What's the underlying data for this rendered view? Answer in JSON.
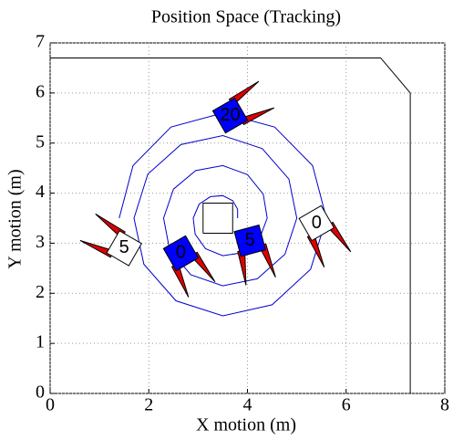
{
  "chart_data": {
    "type": "line",
    "title": "Position Space (Tracking)",
    "xlabel": "X motion (m)",
    "ylabel": "Y motion (m)",
    "xlim": [
      0,
      8
    ],
    "ylim": [
      0,
      7
    ],
    "xticks": [
      0,
      2,
      4,
      6,
      8
    ],
    "yticks": [
      0,
      1,
      2,
      3,
      4,
      5,
      6,
      7
    ],
    "grid": true,
    "series": [
      {
        "color": "#0000cc",
        "x": [
          3.8,
          3.8,
          3.7,
          3.5,
          3.25,
          3.02,
          2.9,
          2.94,
          3.15,
          3.5,
          3.9,
          4.24,
          4.4,
          4.32,
          4.0,
          3.5,
          2.95,
          2.5,
          2.3,
          2.42,
          2.85,
          3.5,
          4.2,
          4.76,
          5.0,
          4.84,
          4.3,
          3.5,
          2.65,
          1.98,
          1.7,
          1.9,
          2.55,
          3.5,
          4.5,
          5.28,
          5.6,
          5.32,
          4.55,
          3.5,
          2.45,
          1.68,
          1.4
        ],
        "y": [
          3.5,
          3.68,
          3.85,
          3.95,
          3.93,
          3.78,
          3.5,
          3.18,
          2.89,
          2.75,
          2.81,
          3.08,
          3.5,
          3.98,
          4.37,
          4.55,
          4.45,
          4.08,
          3.5,
          2.88,
          2.37,
          2.15,
          2.29,
          2.78,
          3.5,
          4.28,
          4.89,
          5.15,
          4.97,
          4.38,
          3.5,
          2.58,
          1.85,
          1.55,
          1.77,
          2.48,
          3.5,
          4.55,
          5.32,
          5.6,
          5.32,
          4.55,
          3.5
        ]
      },
      {
        "color": "#000000",
        "x": [
          0,
          6.7,
          7.3,
          7.3
        ],
        "y": [
          6.7,
          6.7,
          6.0,
          0
        ]
      },
      {
        "color": "#000000",
        "x": [
          3.1,
          3.7,
          3.7,
          3.1,
          3.1
        ],
        "y": [
          3.2,
          3.2,
          3.8,
          3.8,
          3.2
        ]
      }
    ],
    "robots": [
      {
        "label": "5",
        "x": 1.5,
        "y": 2.9,
        "heading": 150,
        "color": "#ffffff"
      },
      {
        "label": "0",
        "x": 2.65,
        "y": 2.8,
        "heading": 300,
        "color": "#0000ff"
      },
      {
        "label": "5",
        "x": 4.05,
        "y": 3.05,
        "heading": 285,
        "color": "#0000ff"
      },
      {
        "label": "0",
        "x": 5.4,
        "y": 3.4,
        "heading": 300,
        "color": "#ffffff"
      },
      {
        "label": "20",
        "x": 3.65,
        "y": 5.55,
        "heading": 30,
        "color": "#0000ff"
      }
    ]
  }
}
